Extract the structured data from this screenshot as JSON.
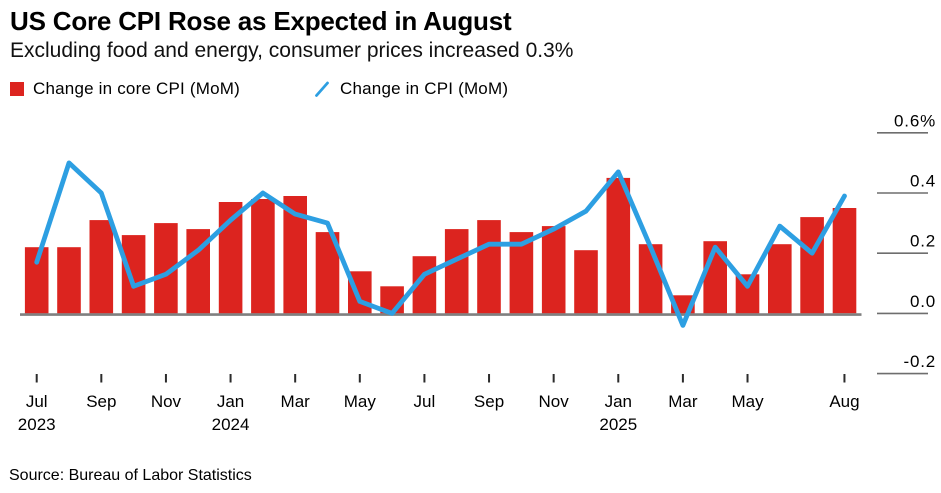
{
  "header": {
    "title": "US Core CPI Rose as Expected in August",
    "subtitle": "Excluding food and energy, consumer prices increased 0.3%"
  },
  "legend": {
    "items": [
      {
        "label": "Change in core CPI (MoM)",
        "swatch": "red-square"
      },
      {
        "label": "Change in CPI (MoM)",
        "swatch": "blue-slash"
      }
    ]
  },
  "footer": {
    "source": "Source: Bureau of Labor Statistics"
  },
  "colors": {
    "bar": "#dc241f",
    "line": "#2d9fe2",
    "baseline": "#7f7f7f",
    "tick": "#2b2b2b",
    "axis_dash": "#6e6e6e",
    "text": "#000000",
    "background": "#ffffff"
  },
  "chart_data": {
    "type": "bar+line",
    "title": "US Core CPI Rose as Expected in August",
    "subtitle": "Excluding food and energy, consumer prices increased 0.3%",
    "source": "Source: Bureau of Labor Statistics",
    "unit": "percent MoM",
    "categories": [
      "Jul 2023",
      "Aug 2023",
      "Sep 2023",
      "Oct 2023",
      "Nov 2023",
      "Dec 2023",
      "Jan 2024",
      "Feb 2024",
      "Mar 2024",
      "Apr 2024",
      "May 2024",
      "Jun 2024",
      "Jul 2024",
      "Aug 2024",
      "Sep 2024",
      "Oct 2024",
      "Nov 2024",
      "Dec 2024",
      "Jan 2025",
      "Feb 2025",
      "Mar 2025",
      "Apr 2025",
      "May 2025",
      "Jun 2025",
      "Jul 2025",
      "Aug 2025"
    ],
    "series": [
      {
        "name": "Change in core CPI (MoM)",
        "type": "bar",
        "color": "#dc241f",
        "values": [
          0.22,
          0.22,
          0.31,
          0.26,
          0.3,
          0.28,
          0.37,
          0.38,
          0.39,
          0.27,
          0.14,
          0.09,
          0.19,
          0.28,
          0.31,
          0.27,
          0.29,
          0.21,
          0.45,
          0.23,
          0.06,
          0.24,
          0.13,
          0.23,
          0.32,
          0.35
        ]
      },
      {
        "name": "Change in CPI (MoM)",
        "type": "line",
        "color": "#2d9fe2",
        "values": [
          0.17,
          0.5,
          0.4,
          0.09,
          0.13,
          0.21,
          0.31,
          0.4,
          0.33,
          0.3,
          0.04,
          0.0,
          0.13,
          0.18,
          0.23,
          0.23,
          0.28,
          0.34,
          0.47,
          0.22,
          -0.04,
          0.22,
          0.09,
          0.29,
          0.2,
          0.39
        ]
      }
    ],
    "ylim": [
      -0.3,
      0.65
    ],
    "yticks": [
      {
        "value": 0.6,
        "label": "0.6%"
      },
      {
        "value": 0.4,
        "label": "0.4"
      },
      {
        "value": 0.2,
        "label": "0.2"
      },
      {
        "value": 0.0,
        "label": "0.0"
      },
      {
        "value": -0.2,
        "label": "-0.2"
      }
    ],
    "xticks": [
      {
        "index": 0,
        "label": "Jul",
        "year": "2023"
      },
      {
        "index": 2,
        "label": "Sep"
      },
      {
        "index": 4,
        "label": "Nov"
      },
      {
        "index": 6,
        "label": "Jan",
        "year": "2024"
      },
      {
        "index": 8,
        "label": "Mar"
      },
      {
        "index": 10,
        "label": "May"
      },
      {
        "index": 12,
        "label": "Jul"
      },
      {
        "index": 14,
        "label": "Sep"
      },
      {
        "index": 16,
        "label": "Nov"
      },
      {
        "index": 18,
        "label": "Jan",
        "year": "2025"
      },
      {
        "index": 20,
        "label": "Mar"
      },
      {
        "index": 22,
        "label": "May"
      },
      {
        "index": 25,
        "label": "Aug"
      }
    ],
    "grid": false,
    "legend_position": "top-left",
    "value_axis_side": "right"
  }
}
